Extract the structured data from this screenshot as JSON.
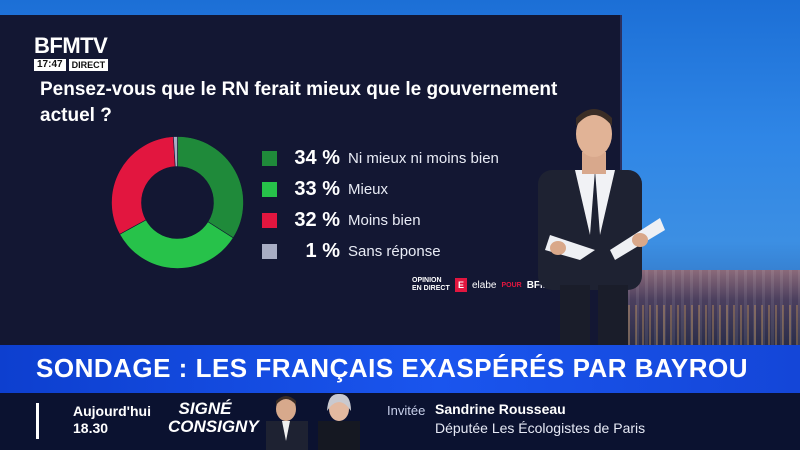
{
  "channel": {
    "logo": "BFMTV",
    "time": "17:47",
    "live": "DIRECT"
  },
  "chart_data": {
    "type": "pie",
    "title": "Pensez-vous que le RN ferait mieux que le gouvernement actuel ?",
    "slices": [
      {
        "label": "Ni mieux ni moins bien",
        "value": 34,
        "display": "34 %",
        "color": "#1f8a3a"
      },
      {
        "label": "Mieux",
        "value": 33,
        "display": "33 %",
        "color": "#27c24a"
      },
      {
        "label": "Moins bien",
        "value": 32,
        "display": "32 %",
        "color": "#e2163f"
      },
      {
        "label": "Sans réponse",
        "value": 1,
        "display": "1 %",
        "color": "#a8adc4"
      }
    ],
    "donut": true,
    "legend_placement": "right"
  },
  "credits": {
    "opinion": "OPINION EN DIRECT",
    "mark": "E",
    "elabe": "elabe",
    "pour": "POUR",
    "brand": "BFM"
  },
  "banner": {
    "headline": "SONDAGE : LES FRANÇAIS EXASPÉRÉS PAR BAYROU",
    "background": "#1a55ee"
  },
  "lower_third": {
    "show_day": "Aujourd'hui",
    "show_time": "18.30",
    "show_name_line1": "SIGNÉ",
    "show_name_line2": "CONSIGNY",
    "invitee_label": "Invitée",
    "invitee_name": "Sandrine Rousseau",
    "invitee_role": "Députée Les Écologistes de Paris"
  }
}
